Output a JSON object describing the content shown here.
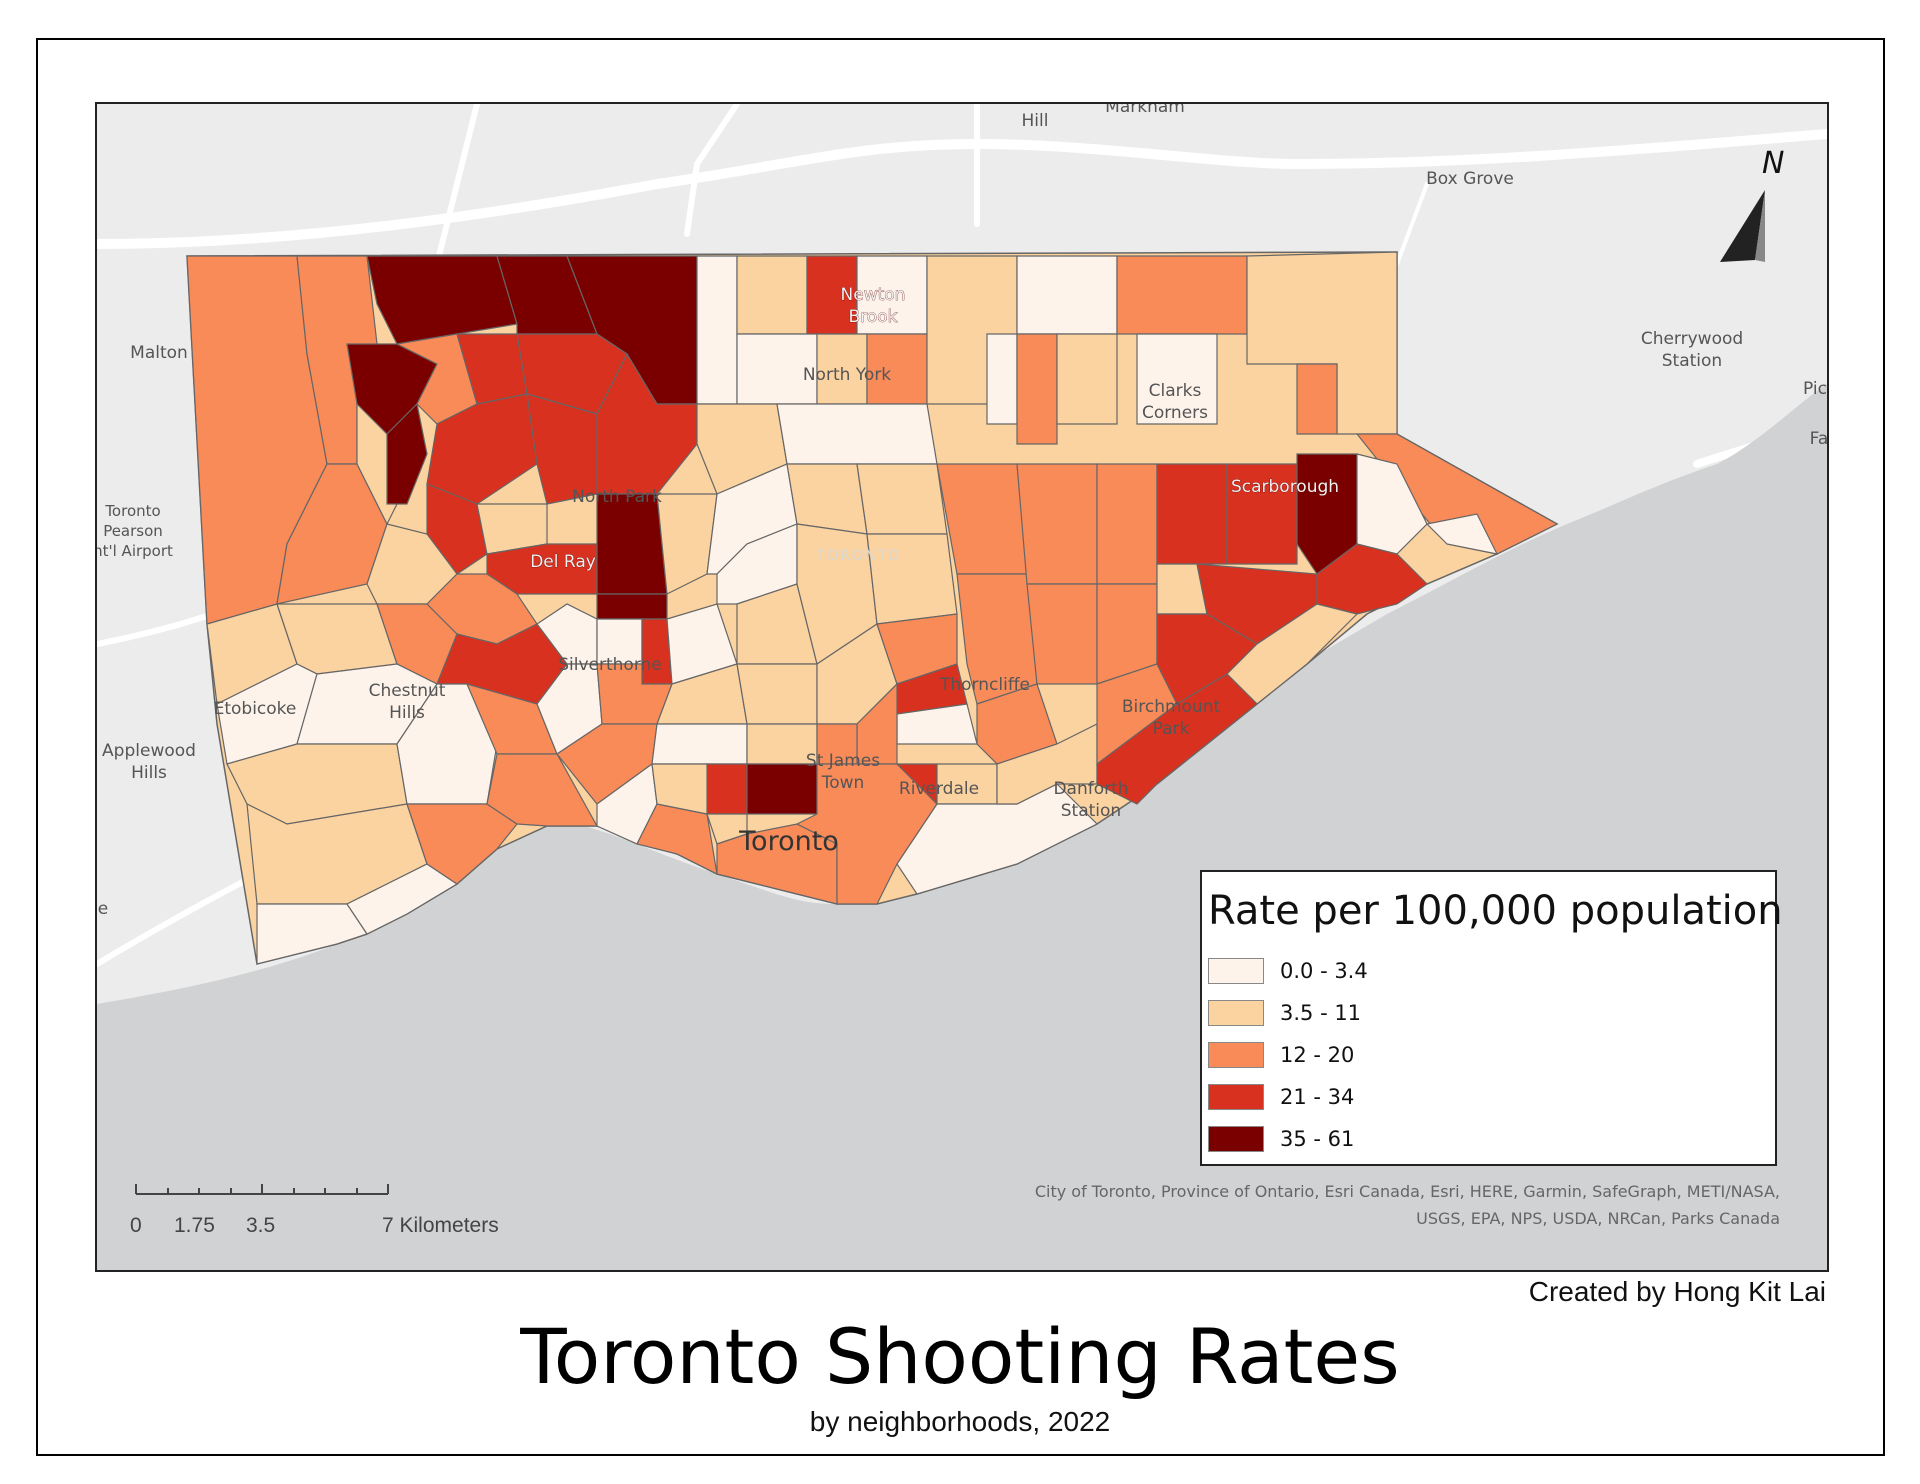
{
  "title": "Toronto Shooting Rates",
  "subtitle": "by neighborhoods, 2022",
  "credit": "Created by Hong Kit Lai",
  "attribution": {
    "line1": "City of Toronto, Province of Ontario, Esri Canada, Esri, HERE, Garmin, SafeGraph, METI/NASA,",
    "line2": "USGS, EPA, NPS, USDA, NRCan, Parks Canada"
  },
  "north_arrow": {
    "label": "N",
    "icon": "north-arrow-icon"
  },
  "scale_bar": {
    "labels": [
      "0",
      "1.75",
      "3.5",
      "7 Kilometers"
    ]
  },
  "legend": {
    "title": "Rate per 100,000 population",
    "classes": [
      {
        "label": "0.0 - 3.4",
        "color": "#fdf3ea"
      },
      {
        "label": "3.5 - 11",
        "color": "#fbd3a1"
      },
      {
        "label": "12 - 20",
        "color": "#f98b59"
      },
      {
        "label": "21 - 34",
        "color": "#d8311f"
      },
      {
        "label": "35 - 61",
        "color": "#7a0000"
      }
    ]
  },
  "place_labels": {
    "hill": "Hill",
    "markham": "Markham",
    "box_grove": "Box Grove",
    "malton": "Malton",
    "cherrywood_1": "Cherrywood",
    "cherrywood_2": "Station",
    "pic": "Pic",
    "fa": "Fa",
    "pearson_1": "Toronto",
    "pearson_2": "Pearson",
    "pearson_3": "nt'l Airport",
    "newton_1": "Newton",
    "newton_2": "Brook",
    "north_york": "North York",
    "clarks_1": "Clarks",
    "clarks_2": "Corners",
    "north_park": "North Park",
    "scarborough": "Scarborough",
    "del_ray": "Del Ray",
    "toronto_ghost": "TORONTO",
    "silverthorne": "Silverthorne",
    "thorncliffe": "Thorncliffe",
    "etobicoke": "Etobicoke",
    "chestnut_1": "Chestnut",
    "chestnut_2": "Hills",
    "birchmount_1": "Birchmount",
    "birchmount_2": "Park",
    "applewood_1": "Applewood",
    "applewood_2": "Hills",
    "st_james_1": "St James",
    "st_james_2": "Town",
    "riverdale": "Riverdale",
    "danforth_1": "Danforth",
    "danforth_2": "Station",
    "toronto": "Toronto",
    "e": "e"
  }
}
